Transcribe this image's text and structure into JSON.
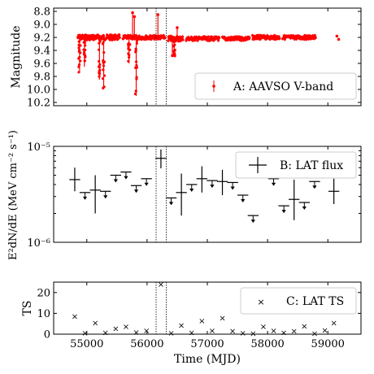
{
  "figure": {
    "shared_xlabel": "Time (MJD)",
    "x_ticks": [
      55000,
      56000,
      57000,
      58000,
      59000
    ],
    "x_range": [
      54450,
      59550
    ],
    "flare_window_mjd": [
      56150,
      56320
    ]
  },
  "chart_data": [
    {
      "type": "scatter",
      "panel": "A",
      "ylabel": "Magnitude",
      "ylim_inverted": [
        8.75,
        10.25
      ],
      "y_ticks": [
        8.8,
        9.0,
        9.2,
        9.4,
        9.6,
        9.8,
        10.0,
        10.2
      ],
      "y_tick_labels": [
        "8.8",
        "9.0",
        "9.2",
        "9.4",
        "9.6",
        "9.8",
        "10.0",
        "10.2"
      ],
      "legend": "A: AAVSO V-band",
      "color": "#ff0000",
      "segments": [
        {
          "x": [
            54850,
            55550
          ],
          "base": 9.2,
          "spread": 0.04
        },
        {
          "x": [
            55600,
            56300
          ],
          "base": 9.2,
          "spread": 0.03
        },
        {
          "x": [
            56350,
            56600
          ],
          "base": 9.22,
          "spread": 0.04
        },
        {
          "x": [
            56650,
            57200
          ],
          "base": 9.22,
          "spread": 0.03
        },
        {
          "x": [
            57250,
            57700
          ],
          "base": 9.22,
          "spread": 0.03
        },
        {
          "x": [
            57750,
            58200
          ],
          "base": 9.2,
          "spread": 0.03
        },
        {
          "x": [
            58250,
            58800
          ],
          "base": 9.2,
          "spread": 0.03
        }
      ],
      "dips": [
        {
          "x": 54880,
          "ymax": 9.75
        },
        {
          "x": 54960,
          "ymax": 9.65
        },
        {
          "x": 55210,
          "ymax": 9.85
        },
        {
          "x": 55280,
          "ymax": 10.0
        },
        {
          "x": 55700,
          "ymax": 9.6
        },
        {
          "x": 55820,
          "ymax": 10.1
        },
        {
          "x": 56450,
          "ymax": 9.5
        }
      ],
      "spikes": [
        {
          "x": 55760,
          "y": 8.82
        },
        {
          "x": 55790,
          "y": 8.88
        },
        {
          "x": 56180,
          "y": 8.85
        },
        {
          "x": 56500,
          "y": 9.05
        },
        {
          "x": 56420,
          "y": 9.48
        }
      ],
      "extra_points": [
        {
          "x": 59150,
          "y": 9.18
        },
        {
          "x": 59180,
          "y": 9.23
        }
      ]
    },
    {
      "type": "scatter",
      "panel": "B",
      "ylabel": "E²dN/dE (MeV cm⁻² s⁻¹)",
      "y_scale": "log",
      "ylim": [
        1e-06,
        1e-05
      ],
      "y_tick_labels": [
        "10⁻⁵",
        "10⁻⁶"
      ],
      "legend": "B: LAT flux",
      "bin_halfwidth": 90,
      "points": [
        {
          "x": 54800,
          "y": 4.5e-06,
          "lo": 3.4e-06,
          "hi": 6e-06,
          "type": "detection"
        },
        {
          "x": 54970,
          "y": 3.3e-06,
          "type": "upper_limit"
        },
        {
          "x": 55140,
          "y": 3.5e-06,
          "lo": 2e-06,
          "hi": 5e-06,
          "type": "detection"
        },
        {
          "x": 55310,
          "y": 3.4e-06,
          "type": "upper_limit"
        },
        {
          "x": 55480,
          "y": 5e-06,
          "type": "upper_limit"
        },
        {
          "x": 55650,
          "y": 5.4e-06,
          "type": "upper_limit"
        },
        {
          "x": 55820,
          "y": 3.9e-06,
          "type": "upper_limit"
        },
        {
          "x": 55990,
          "y": 4.6e-06,
          "type": "upper_limit"
        },
        {
          "x": 56230,
          "y": 7.5e-06,
          "lo": 5.9e-06,
          "hi": 9.3e-06,
          "type": "detection"
        },
        {
          "x": 56400,
          "y": 2.9e-06,
          "type": "upper_limit"
        },
        {
          "x": 56570,
          "y": 3.3e-06,
          "lo": 1.9e-06,
          "hi": 5.2e-06,
          "type": "detection"
        },
        {
          "x": 56740,
          "y": 4e-06,
          "type": "upper_limit"
        },
        {
          "x": 56910,
          "y": 4.6e-06,
          "lo": 3.3e-06,
          "hi": 6.2e-06,
          "type": "detection"
        },
        {
          "x": 57080,
          "y": 4.4e-06,
          "type": "upper_limit"
        },
        {
          "x": 57250,
          "y": 4.3e-06,
          "lo": 3.1e-06,
          "hi": 5.7e-06,
          "type": "detection"
        },
        {
          "x": 57420,
          "y": 4.2e-06,
          "type": "upper_limit"
        },
        {
          "x": 57590,
          "y": 3.1e-06,
          "type": "upper_limit"
        },
        {
          "x": 57760,
          "y": 1.9e-06,
          "type": "upper_limit"
        },
        {
          "x": 57930,
          "y": 5.6e-06,
          "type": "upper_limit"
        },
        {
          "x": 58100,
          "y": 4.6e-06,
          "type": "upper_limit"
        },
        {
          "x": 58270,
          "y": 2.4e-06,
          "type": "upper_limit"
        },
        {
          "x": 58440,
          "y": 2.8e-06,
          "lo": 1.7e-06,
          "hi": 4.5e-06,
          "type": "detection"
        },
        {
          "x": 58610,
          "y": 2.6e-06,
          "type": "upper_limit"
        },
        {
          "x": 58780,
          "y": 4.3e-06,
          "type": "upper_limit"
        },
        {
          "x": 59100,
          "y": 3.4e-06,
          "lo": 2.5e-06,
          "hi": 4.6e-06,
          "type": "detection"
        }
      ]
    },
    {
      "type": "scatter",
      "panel": "C",
      "ylabel": "TS",
      "ylim": [
        0,
        25
      ],
      "y_ticks": [
        0,
        10,
        20
      ],
      "legend": "C: LAT TS",
      "points": [
        {
          "x": 54800,
          "y": 8.5
        },
        {
          "x": 54970,
          "y": 0.5
        },
        {
          "x": 55140,
          "y": 5.5
        },
        {
          "x": 55310,
          "y": 0.8
        },
        {
          "x": 55480,
          "y": 2.8
        },
        {
          "x": 55650,
          "y": 3.8
        },
        {
          "x": 55820,
          "y": 1.0
        },
        {
          "x": 55990,
          "y": 1.8
        },
        {
          "x": 56230,
          "y": 24.0
        },
        {
          "x": 56400,
          "y": 0.5
        },
        {
          "x": 56570,
          "y": 4.2
        },
        {
          "x": 56740,
          "y": 0.8
        },
        {
          "x": 56910,
          "y": 6.5
        },
        {
          "x": 57080,
          "y": 1.8
        },
        {
          "x": 57250,
          "y": 7.8
        },
        {
          "x": 57420,
          "y": 1.5
        },
        {
          "x": 57590,
          "y": 0.5
        },
        {
          "x": 57760,
          "y": 0.3
        },
        {
          "x": 57930,
          "y": 3.8
        },
        {
          "x": 58100,
          "y": 1.8
        },
        {
          "x": 58270,
          "y": 0.8
        },
        {
          "x": 58440,
          "y": 1.5
        },
        {
          "x": 58610,
          "y": 4.0
        },
        {
          "x": 58780,
          "y": 0.3
        },
        {
          "x": 58950,
          "y": 2.0
        },
        {
          "x": 59100,
          "y": 5.5
        }
      ]
    }
  ]
}
